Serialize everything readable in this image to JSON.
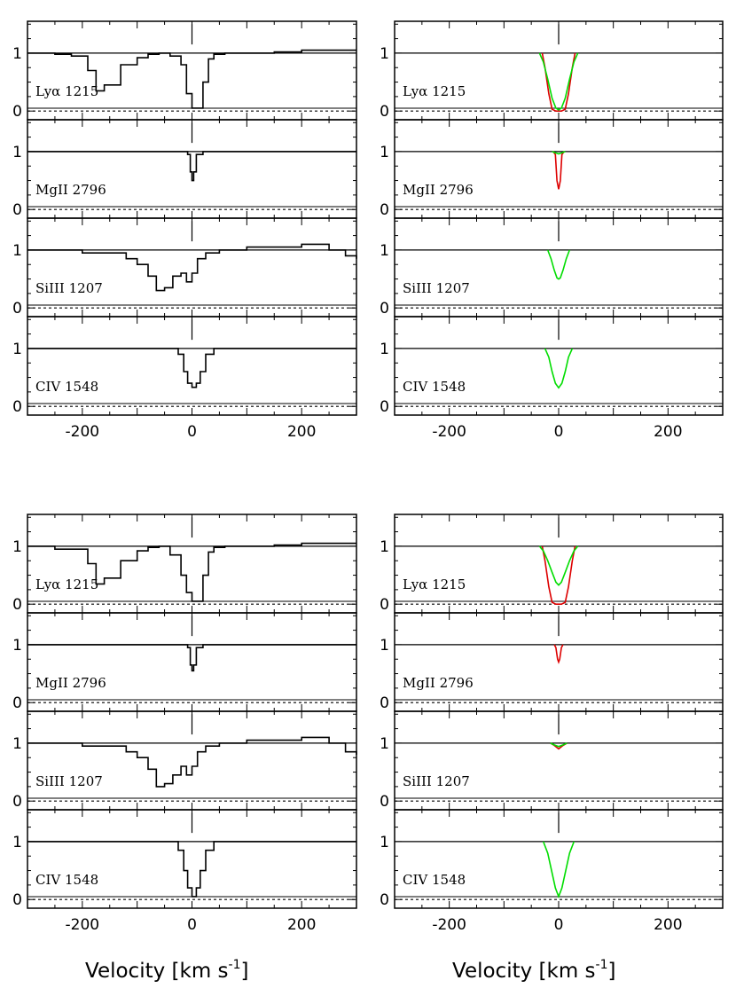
{
  "chart_data": {
    "type": "line",
    "xlabel": "Velocity [km s",
    "xlabel_exponent": "-1",
    "xlabel_close": "]",
    "x_range": [
      -300,
      300
    ],
    "y_range": [
      -0.15,
      1.55
    ],
    "x_ticks": [
      -200,
      0,
      200
    ],
    "x_tick_labels": [
      "-200",
      "0",
      "200"
    ],
    "y_ticks": [
      0,
      1
    ],
    "y_tick_labels": [
      "0",
      "1"
    ],
    "profile_colors": {
      "observed": "#000000",
      "model_a": "#dd0000",
      "model_b": "#00dd00"
    },
    "grid": false,
    "legend": "none",
    "transitions": [
      {
        "label": "Lyα 1215",
        "observed": {
          "x": [
            -300,
            -250,
            -220,
            -190,
            -175,
            -160,
            -130,
            -100,
            -80,
            -60,
            -40,
            -20,
            -10,
            0,
            10,
            20,
            30,
            40,
            60,
            100,
            150,
            200,
            250,
            300
          ],
          "y": [
            1.0,
            0.98,
            0.95,
            0.7,
            0.35,
            0.45,
            0.8,
            0.92,
            0.98,
            1.0,
            0.95,
            0.8,
            0.3,
            0.05,
            0.05,
            0.5,
            0.9,
            0.98,
            1.0,
            1.0,
            1.02,
            1.05,
            1.05,
            1.05
          ]
        },
        "model_a": {
          "x": [
            -30,
            -25,
            -18,
            -12,
            -5,
            0,
            5,
            12,
            18,
            25,
            30
          ],
          "y": [
            1.0,
            0.75,
            0.3,
            0.03,
            0.0,
            0.0,
            0.0,
            0.03,
            0.3,
            0.75,
            1.0
          ]
        },
        "model_b": {
          "x": [
            -35,
            -28,
            -20,
            -12,
            -5,
            0,
            5,
            12,
            20,
            28,
            35
          ],
          "y": [
            1.0,
            0.85,
            0.55,
            0.22,
            0.05,
            0.02,
            0.05,
            0.22,
            0.55,
            0.85,
            1.0
          ]
        }
      },
      {
        "label": "MgII 2796",
        "observed": {
          "x": [
            -300,
            -100,
            -20,
            -8,
            -3,
            0,
            3,
            8,
            20,
            100,
            300
          ],
          "y": [
            1.0,
            1.0,
            1.0,
            0.95,
            0.65,
            0.5,
            0.65,
            0.95,
            1.0,
            1.0,
            1.0
          ]
        },
        "model_a": {
          "x": [
            -10,
            -6,
            -3,
            0,
            3,
            6,
            10
          ],
          "y": [
            1.0,
            0.95,
            0.5,
            0.35,
            0.5,
            0.95,
            1.0
          ]
        },
        "model_b": {
          "x": [
            -12,
            -6,
            0,
            6,
            12
          ],
          "y": [
            1.0,
            0.98,
            0.96,
            0.98,
            1.0
          ]
        }
      },
      {
        "label": "SiIII 1207",
        "observed": {
          "x": [
            -300,
            -200,
            -150,
            -120,
            -100,
            -80,
            -65,
            -50,
            -35,
            -20,
            -10,
            0,
            10,
            25,
            50,
            100,
            150,
            200,
            250,
            280,
            300
          ],
          "y": [
            1.0,
            0.95,
            0.95,
            0.85,
            0.75,
            0.55,
            0.3,
            0.35,
            0.55,
            0.6,
            0.45,
            0.6,
            0.85,
            0.95,
            1.0,
            1.05,
            1.05,
            1.1,
            1.0,
            0.9,
            0.85
          ]
        },
        "model_a": {
          "x": [],
          "y": []
        },
        "model_b": {
          "x": [
            -20,
            -14,
            -8,
            -3,
            0,
            3,
            8,
            14,
            20
          ],
          "y": [
            1.0,
            0.85,
            0.65,
            0.52,
            0.5,
            0.52,
            0.65,
            0.85,
            1.0
          ]
        }
      },
      {
        "label": "CIV 1548",
        "observed": {
          "x": [
            -300,
            -100,
            -40,
            -25,
            -15,
            -8,
            0,
            8,
            15,
            25,
            40,
            100,
            300
          ],
          "y": [
            1.0,
            1.0,
            1.0,
            0.9,
            0.6,
            0.4,
            0.33,
            0.4,
            0.6,
            0.9,
            1.0,
            1.0,
            1.0
          ]
        },
        "model_a": {
          "x": [],
          "y": []
        },
        "model_b": {
          "x": [
            -25,
            -18,
            -12,
            -6,
            0,
            6,
            12,
            18,
            25
          ],
          "y": [
            1.0,
            0.85,
            0.6,
            0.4,
            0.32,
            0.4,
            0.6,
            0.85,
            1.0
          ]
        }
      },
      {
        "label": "Lyα 1215",
        "observed": {
          "x": [
            -300,
            -250,
            -220,
            -190,
            -175,
            -160,
            -130,
            -100,
            -80,
            -60,
            -40,
            -20,
            -10,
            0,
            10,
            20,
            30,
            40,
            60,
            100,
            150,
            200,
            250,
            300
          ],
          "y": [
            1.0,
            0.95,
            0.95,
            0.7,
            0.35,
            0.45,
            0.75,
            0.92,
            0.98,
            1.0,
            0.85,
            0.5,
            0.2,
            0.05,
            0.05,
            0.5,
            0.9,
            0.98,
            1.0,
            1.0,
            1.02,
            1.05,
            1.05,
            1.05
          ]
        },
        "model_a": {
          "x": [
            -30,
            -25,
            -18,
            -12,
            -5,
            0,
            5,
            12,
            18,
            25,
            30
          ],
          "y": [
            1.0,
            0.75,
            0.3,
            0.03,
            0.0,
            0.0,
            0.0,
            0.03,
            0.3,
            0.75,
            1.0
          ]
        },
        "model_b": {
          "x": [
            -35,
            -28,
            -20,
            -12,
            -5,
            0,
            5,
            12,
            20,
            28,
            35
          ],
          "y": [
            1.0,
            0.92,
            0.75,
            0.55,
            0.38,
            0.33,
            0.38,
            0.55,
            0.75,
            0.92,
            1.0
          ]
        }
      },
      {
        "label": "MgII 2796",
        "observed": {
          "x": [
            -300,
            -100,
            -20,
            -8,
            -3,
            0,
            3,
            8,
            20,
            100,
            300
          ],
          "y": [
            1.0,
            1.0,
            1.0,
            0.95,
            0.65,
            0.55,
            0.65,
            0.95,
            1.0,
            1.0,
            1.0
          ]
        },
        "model_a": {
          "x": [
            -8,
            -5,
            -2,
            0,
            2,
            5,
            8
          ],
          "y": [
            1.0,
            0.95,
            0.75,
            0.7,
            0.75,
            0.95,
            1.0
          ]
        },
        "model_b": {
          "x": [],
          "y": []
        }
      },
      {
        "label": "SiIII 1207",
        "observed": {
          "x": [
            -300,
            -200,
            -150,
            -120,
            -100,
            -80,
            -65,
            -50,
            -35,
            -20,
            -10,
            0,
            10,
            25,
            50,
            100,
            150,
            200,
            250,
            280,
            300
          ],
          "y": [
            1.0,
            0.95,
            0.95,
            0.85,
            0.75,
            0.55,
            0.25,
            0.3,
            0.45,
            0.6,
            0.45,
            0.6,
            0.85,
            0.95,
            1.0,
            1.05,
            1.05,
            1.1,
            1.0,
            0.85,
            0.8
          ]
        },
        "model_a": {
          "x": [
            -15,
            -8,
            0,
            8,
            15
          ],
          "y": [
            1.0,
            0.96,
            0.9,
            0.96,
            1.0
          ]
        },
        "model_b": {
          "x": [
            -15,
            -8,
            0,
            8,
            15
          ],
          "y": [
            1.0,
            0.97,
            0.94,
            0.97,
            1.0
          ]
        }
      },
      {
        "label": "CIV 1548",
        "observed": {
          "x": [
            -300,
            -100,
            -40,
            -25,
            -15,
            -8,
            0,
            8,
            15,
            25,
            40,
            100,
            300
          ],
          "y": [
            1.0,
            1.0,
            1.0,
            0.85,
            0.5,
            0.2,
            0.05,
            0.2,
            0.5,
            0.85,
            1.0,
            1.0,
            1.0
          ]
        },
        "model_a": {
          "x": [],
          "y": []
        },
        "model_b": {
          "x": [
            -28,
            -20,
            -13,
            -6,
            0,
            6,
            13,
            20,
            28
          ],
          "y": [
            1.0,
            0.8,
            0.5,
            0.2,
            0.05,
            0.2,
            0.5,
            0.8,
            1.0
          ]
        }
      }
    ]
  }
}
